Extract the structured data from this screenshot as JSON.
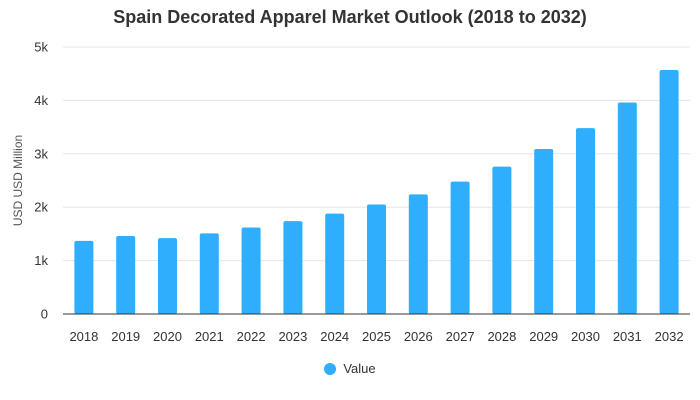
{
  "chart_data": {
    "type": "bar",
    "title": "Spain Decorated Apparel Market Outlook (2018 to 2032)",
    "xlabel": "",
    "ylabel": "USD USD Million",
    "categories": [
      "2018",
      "2019",
      "2020",
      "2021",
      "2022",
      "2023",
      "2024",
      "2025",
      "2026",
      "2027",
      "2028",
      "2029",
      "2030",
      "2031",
      "2032"
    ],
    "series": [
      {
        "name": "Value",
        "values": [
          1370,
          1460,
          1420,
          1510,
          1620,
          1740,
          1880,
          2050,
          2240,
          2480,
          2760,
          3090,
          3480,
          3960,
          4570
        ]
      }
    ],
    "ylim": [
      0,
      5000
    ],
    "yticks": [
      0,
      1000,
      2000,
      3000,
      4000,
      5000
    ],
    "ytick_labels": [
      "0",
      "1k",
      "2k",
      "3k",
      "4k",
      "5k"
    ],
    "grid": true,
    "legend_position": "bottom",
    "colors": {
      "bar": "#2eaefc",
      "grid": "#e6e6e6",
      "axis": "#333333"
    }
  }
}
